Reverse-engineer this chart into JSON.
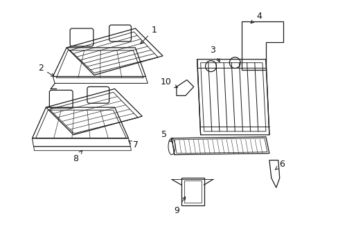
{
  "background": "#ffffff",
  "line_color": "#1a1a1a",
  "lw": 0.9
}
